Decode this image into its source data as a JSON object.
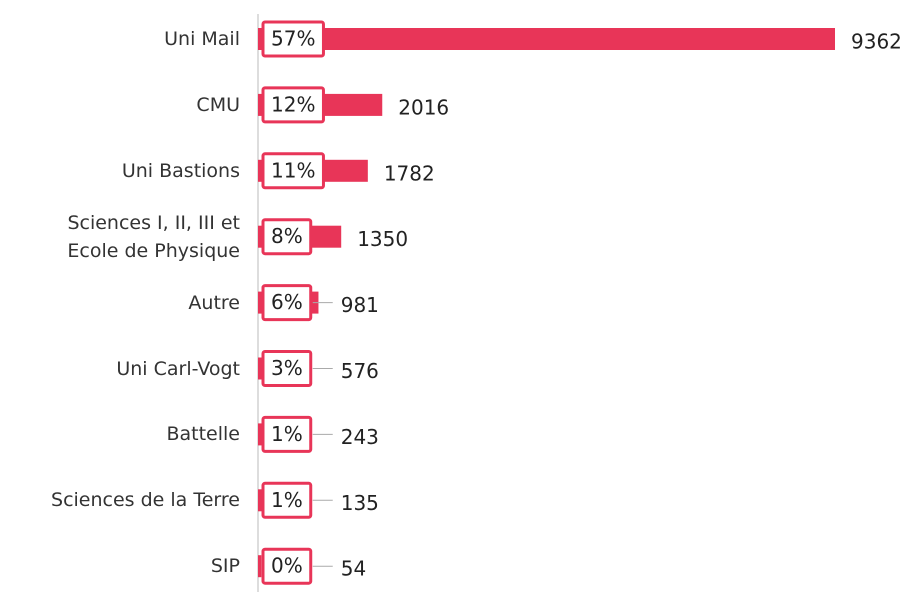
{
  "chart_data": {
    "type": "bar",
    "categories": [
      "Uni Mail",
      "CMU",
      "Uni Bastions",
      "Sciences I, II, III et\nEcole de Physique",
      "Autre",
      "Uni Carl-Vogt",
      "Battelle",
      "Sciences de la Terre",
      "SIP"
    ],
    "values": [
      9362,
      2016,
      1782,
      1350,
      981,
      576,
      243,
      135,
      54
    ],
    "share_labels": [
      "57%",
      "12%",
      "11%",
      "8%",
      "6%",
      "3%",
      "1%",
      "1%",
      "0%"
    ],
    "color": "#e83558"
  }
}
